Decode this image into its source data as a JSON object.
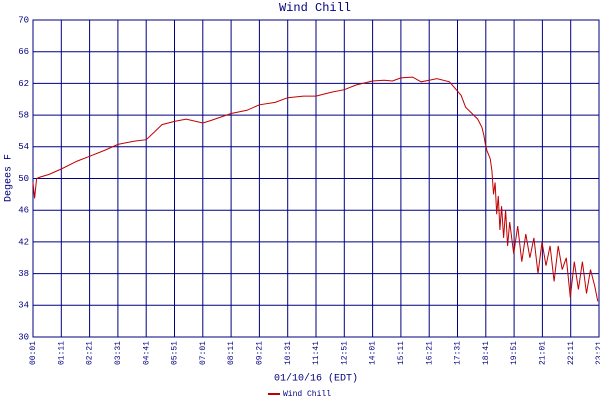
{
  "chart_data": {
    "type": "line",
    "title": "Wind Chill",
    "x_label": "01/10/16 (EDT)",
    "y_label": "Degees F",
    "x": [
      1,
      5,
      10,
      20,
      40,
      71,
      110,
      141,
      180,
      211,
      250,
      281,
      300,
      320,
      351,
      380,
      421,
      440,
      491,
      530,
      561,
      600,
      631,
      670,
      701,
      740,
      771,
      800,
      841,
      870,
      890,
      911,
      940,
      961,
      981,
      1000,
      1031,
      1060,
      1071,
      1091,
      1101,
      1111,
      1116,
      1120,
      1124,
      1128,
      1132,
      1136,
      1140,
      1144,
      1148,
      1152,
      1156,
      1160,
      1165,
      1170,
      1175,
      1180,
      1190,
      1200,
      1210,
      1220,
      1230,
      1240,
      1250,
      1260,
      1270,
      1280,
      1290,
      1300,
      1310,
      1320,
      1330,
      1340,
      1350,
      1360,
      1370,
      1380,
      1390,
      1398
    ],
    "series": [
      {
        "name": "Wind Chill",
        "color": "#c00000",
        "values": [
          49.5,
          47.5,
          50,
          50.2,
          50.5,
          51.2,
          52.2,
          52.8,
          53.6,
          54.3,
          54.7,
          54.9,
          55.8,
          56.8,
          57.2,
          57.5,
          57,
          57.3,
          58.2,
          58.6,
          59.3,
          59.6,
          60.2,
          60.4,
          60.4,
          60.9,
          61.2,
          61.8,
          62.3,
          62.4,
          62.3,
          62.7,
          62.8,
          62.2,
          62.4,
          62.6,
          62.2,
          60.5,
          59,
          58,
          57.5,
          56.5,
          55.5,
          54.3,
          53.5,
          53,
          52.5,
          51,
          48,
          49.5,
          45.5,
          47.8,
          43.5,
          46.5,
          42.5,
          46,
          41.5,
          44.5,
          40.5,
          44,
          39.5,
          43,
          40,
          42.5,
          38,
          42,
          39,
          41.5,
          37,
          41.5,
          38.5,
          40,
          35,
          39.5,
          36,
          39.5,
          35.5,
          38.5,
          36.5,
          34.5
        ]
      }
    ],
    "xlim": [
      1,
      1401
    ],
    "xticks": [
      {
        "value": 1,
        "label": "00:01"
      },
      {
        "value": 71,
        "label": "01:11"
      },
      {
        "value": 141,
        "label": "02:21"
      },
      {
        "value": 211,
        "label": "03:31"
      },
      {
        "value": 281,
        "label": "04:41"
      },
      {
        "value": 351,
        "label": "05:51"
      },
      {
        "value": 421,
        "label": "07:01"
      },
      {
        "value": 491,
        "label": "08:11"
      },
      {
        "value": 561,
        "label": "09:21"
      },
      {
        "value": 631,
        "label": "10:31"
      },
      {
        "value": 701,
        "label": "11:41"
      },
      {
        "value": 771,
        "label": "12:51"
      },
      {
        "value": 841,
        "label": "14:01"
      },
      {
        "value": 911,
        "label": "15:11"
      },
      {
        "value": 981,
        "label": "16:21"
      },
      {
        "value": 1051,
        "label": "17:31"
      },
      {
        "value": 1121,
        "label": "18:41"
      },
      {
        "value": 1191,
        "label": "19:51"
      },
      {
        "value": 1261,
        "label": "21:01"
      },
      {
        "value": 1331,
        "label": "22:11"
      },
      {
        "value": 1401,
        "label": "23:21"
      }
    ],
    "ylim": [
      30,
      70
    ],
    "yticks": [
      30,
      34,
      38,
      42,
      46,
      50,
      54,
      58,
      62,
      66,
      70
    ],
    "grid": true,
    "grid_color": "#000080"
  }
}
